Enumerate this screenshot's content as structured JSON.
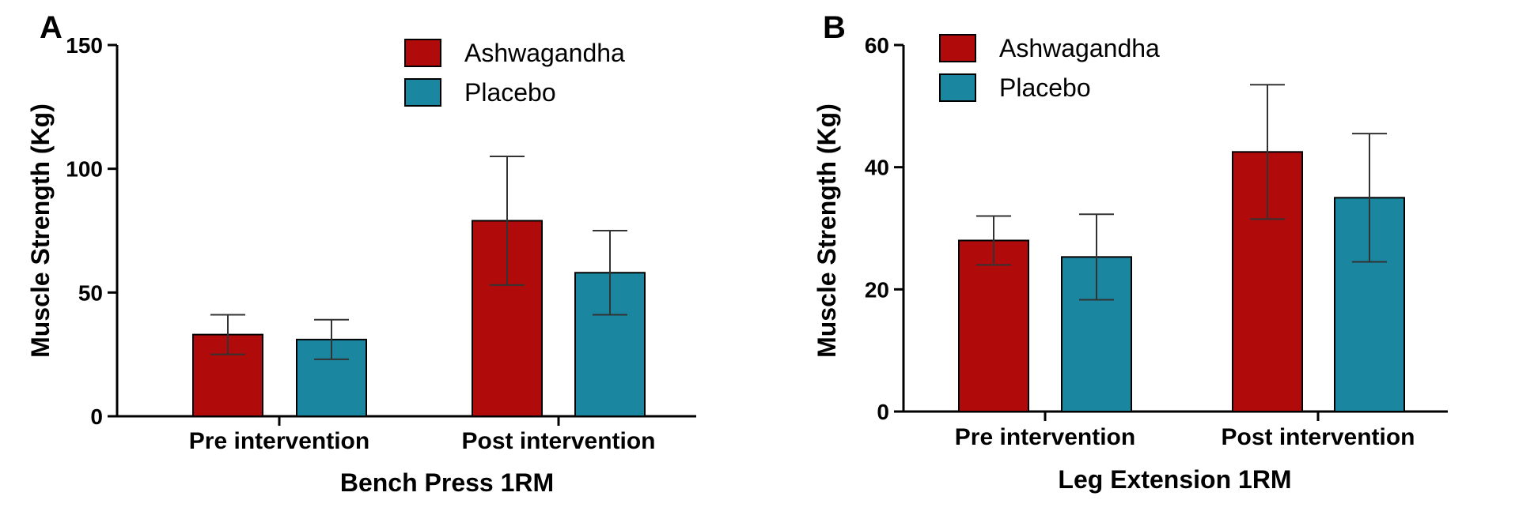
{
  "colors": {
    "ashwagandha": "#b00a0a",
    "placebo": "#1a86a0",
    "axis": "#000000",
    "error": "#333333"
  },
  "chart_data": [
    {
      "panel": "A",
      "type": "bar",
      "title": "",
      "xlabel": "Bench Press 1RM",
      "ylabel": "Muscle Strength (Kg)",
      "ylim": [
        0,
        150
      ],
      "yticks": [
        0,
        50,
        100,
        150
      ],
      "ytick_labels": [
        "0",
        "50",
        "100",
        "150"
      ],
      "categories": [
        "Pre intervention",
        "Post intervention"
      ],
      "legend_position": "top-right",
      "series": [
        {
          "name": "Ashwagandha",
          "color_key": "ashwagandha",
          "values": [
            33,
            79
          ],
          "errors": [
            8,
            26
          ]
        },
        {
          "name": "Placebo",
          "color_key": "placebo",
          "values": [
            31,
            58
          ],
          "errors": [
            8,
            17
          ]
        }
      ]
    },
    {
      "panel": "B",
      "type": "bar",
      "title": "",
      "xlabel": "Leg Extension 1RM",
      "ylabel": "Muscle Strength (Kg)",
      "ylim": [
        0,
        60
      ],
      "yticks": [
        0,
        20,
        40,
        60
      ],
      "ytick_labels": [
        "0",
        "20",
        "40",
        "60"
      ],
      "categories": [
        "Pre intervention",
        "Post intervention"
      ],
      "legend_position": "top-left",
      "series": [
        {
          "name": "Ashwagandha",
          "color_key": "ashwagandha",
          "values": [
            28,
            42.5
          ],
          "errors": [
            4,
            11
          ]
        },
        {
          "name": "Placebo",
          "color_key": "placebo",
          "values": [
            25.3,
            35
          ],
          "errors": [
            7,
            10.5
          ]
        }
      ]
    }
  ]
}
